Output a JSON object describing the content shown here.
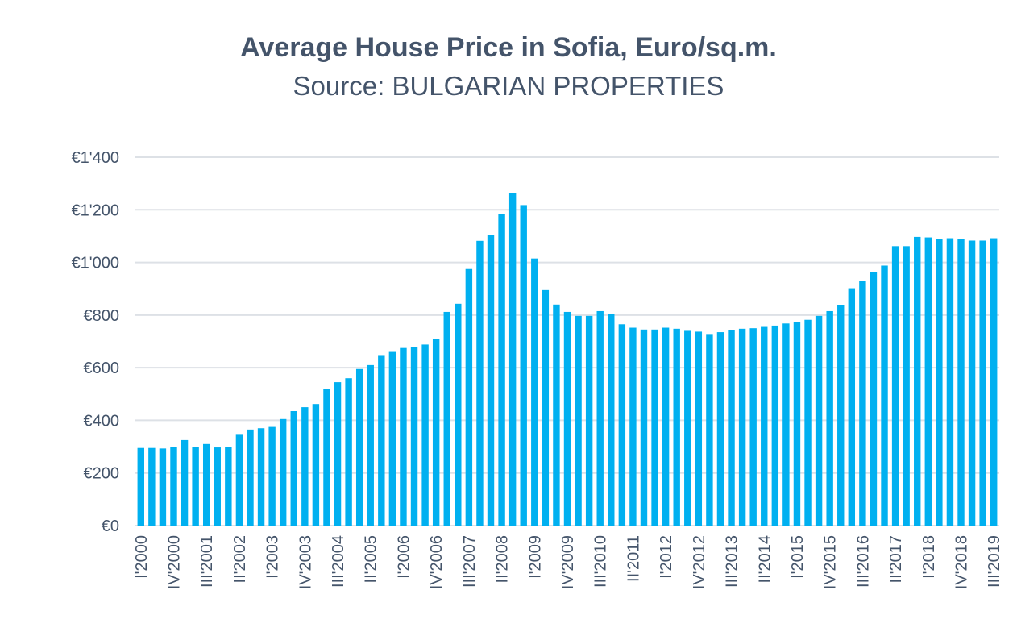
{
  "chart_data": {
    "type": "bar",
    "title": "Average House Price in Sofia, Euro/sq.m.",
    "subtitle": "Source: BULGARIAN PROPERTIES",
    "xlabel": "",
    "ylabel": "",
    "ylim": [
      0,
      1400
    ],
    "yticks": [
      0,
      200,
      400,
      600,
      800,
      1000,
      1200,
      1400
    ],
    "ytick_labels": [
      "€0",
      "€200",
      "€400",
      "€600",
      "€800",
      "€1'000",
      "€1'200",
      "€1'400"
    ],
    "grid": true,
    "bar_color": "#00b0f0",
    "categories": [
      "I'2000",
      "II'2000",
      "III'2000",
      "IV'2000",
      "I'2001",
      "II'2001",
      "III'2001",
      "IV'2001",
      "I'2002",
      "II'2002",
      "III'2002",
      "IV'2002",
      "I'2003",
      "II'2003",
      "III'2003",
      "IV'2003",
      "I'2004",
      "II'2004",
      "III'2004",
      "IV'2004",
      "I'2005",
      "II'2005",
      "III'2005",
      "IV'2005",
      "I'2006",
      "II'2006",
      "III'2006",
      "IV'2006",
      "I'2007",
      "II'2007",
      "III'2007",
      "IV'2007",
      "I'2008",
      "II'2008",
      "III'2008",
      "IV'2008",
      "I'2009",
      "II'2009",
      "III'2009",
      "IV'2009",
      "I'2010",
      "II'2010",
      "III'2010",
      "IV'2010",
      "I'2011",
      "II'2011",
      "III'2011",
      "IV'2011",
      "I'2012",
      "II'2012",
      "III'2012",
      "IV'2012",
      "I'2013",
      "II'2013",
      "III'2013",
      "IV'2013",
      "I'2014",
      "II'2014",
      "III'2014",
      "IV'2014",
      "I'2015",
      "II'2015",
      "III'2015",
      "IV'2015",
      "I'2016",
      "II'2016",
      "III'2016",
      "IV'2016",
      "I'2017",
      "II'2017",
      "III'2017",
      "IV'2017",
      "I'2018",
      "II'2018",
      "III'2018",
      "IV'2018",
      "I'2019",
      "II'2019",
      "III'2019"
    ],
    "tick_label_every": 3,
    "values": [
      295,
      295,
      293,
      300,
      325,
      300,
      310,
      297,
      300,
      345,
      365,
      370,
      375,
      405,
      435,
      450,
      462,
      518,
      545,
      560,
      595,
      610,
      645,
      660,
      675,
      678,
      688,
      710,
      812,
      843,
      975,
      1082,
      1105,
      1185,
      1265,
      1218,
      1015,
      895,
      840,
      812,
      797,
      797,
      815,
      803,
      765,
      752,
      745,
      745,
      752,
      748,
      740,
      737,
      728,
      735,
      742,
      748,
      750,
      755,
      760,
      768,
      772,
      782,
      797,
      815,
      838,
      902,
      930,
      962,
      988,
      1062,
      1062,
      1097,
      1095,
      1090,
      1092,
      1088,
      1083,
      1083,
      1092
    ]
  }
}
